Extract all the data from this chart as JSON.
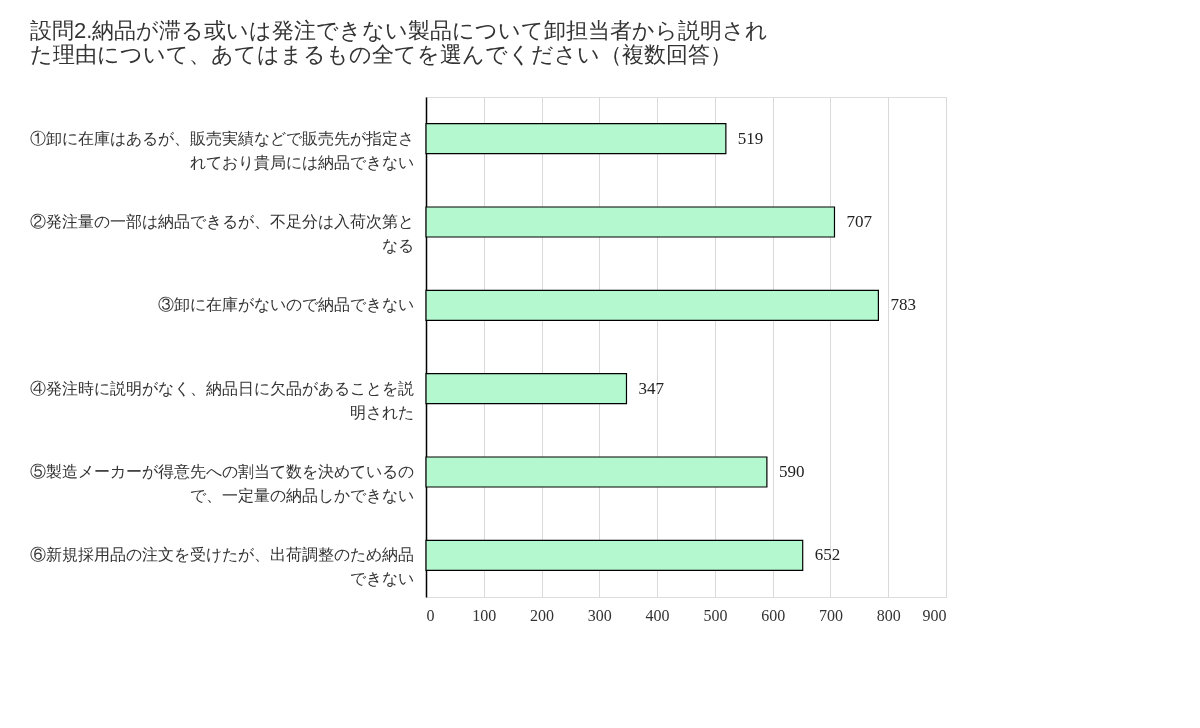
{
  "chart_data": {
    "type": "bar",
    "orientation": "horizontal",
    "title": "設問2.納品が滞る或いは発注できない製品について卸担当者から説明された理由について、あてはまるもの全てを選んでください（複数回答）",
    "categories": [
      "①卸に在庫はあるが、販売実績などで販売先が指定されており貴局には納品できない",
      "②発注量の一部は納品できるが、不足分は入荷次第となる",
      "③卸に在庫がないので納品できない",
      "④発注時に説明がなく、納品日に欠品があることを説明された",
      "⑤製造メーカーが得意先への割当て数を決めているので、一定量の納品しかできない",
      "⑥新規採用品の注文を受けたが、出荷調整のため納品できない"
    ],
    "values": [
      519,
      707,
      783,
      347,
      590,
      652
    ],
    "color": "#b3f8cf",
    "xlim": [
      0,
      900
    ],
    "xticks": [
      0,
      100,
      200,
      300,
      400,
      500,
      600,
      700,
      800,
      900
    ],
    "grid": "x",
    "data_labels": true
  }
}
